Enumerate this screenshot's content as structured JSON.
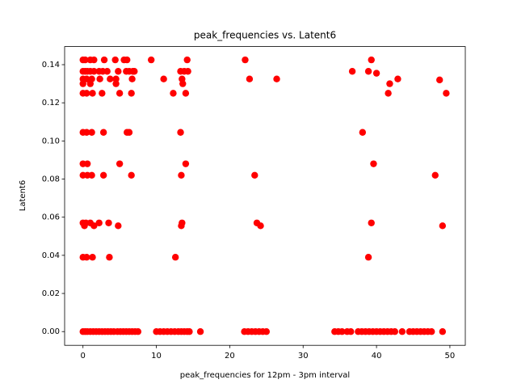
{
  "chart_data": {
    "type": "scatter",
    "title": "peak_frequencies vs. Latent6",
    "x_label": "peak_frequencies for 12pm - 3pm interval",
    "y_label": "Latent6",
    "color": "#ff0000",
    "xlim": [
      -2.5,
      52.1
    ],
    "ylim": [
      -0.0072,
      0.1495
    ],
    "xticks": [
      0,
      10,
      20,
      30,
      40,
      50
    ],
    "yticks": [
      {
        "value": 0,
        "label": "0.00"
      },
      {
        "value": 0.02,
        "label": "0.02"
      },
      {
        "value": 0.04,
        "label": "0.04"
      },
      {
        "value": 0.06,
        "label": "0.06"
      },
      {
        "value": 0.08,
        "label": "0.08"
      },
      {
        "value": 0.1,
        "label": "0.10"
      },
      {
        "value": 0.12,
        "label": "0.12"
      },
      {
        "value": 0.14,
        "label": "0.14"
      }
    ],
    "x": [
      0,
      0.3,
      1,
      1.5,
      2.9,
      4.4,
      5.6,
      6,
      9.3,
      14.2,
      22.1,
      39.3,
      0,
      0.3,
      0.6,
      1,
      1.5,
      2.2,
      2.7,
      3.3,
      4.8,
      5.9,
      6.3,
      6.8,
      7,
      13.3,
      13.8,
      14.3,
      36.7,
      38.9,
      40,
      0,
      0.5,
      1.2,
      2.3,
      3.7,
      4.5,
      6.7,
      11,
      13.5,
      22.7,
      26.4,
      42.9,
      48.6,
      0,
      1,
      4.5,
      13.6,
      41.8,
      0,
      0.5,
      1.3,
      2.6,
      5,
      6.6,
      12.3,
      14,
      41.6,
      49.5,
      0,
      0.5,
      1.2,
      2.8,
      6,
      6.3,
      13.3,
      38.1,
      0,
      0.6,
      5,
      14,
      39.6,
      0,
      0.6,
      1.2,
      2.8,
      6.6,
      13.4,
      23.4,
      48,
      0,
      0.4,
      1,
      2.2,
      3.5,
      13.5,
      23.7,
      39.3,
      0.2,
      1.5,
      4.8,
      13.4,
      24.2,
      49,
      0,
      0.5,
      1.3,
      3.6,
      12.6,
      38.9,
      0,
      0.3,
      0.6,
      1,
      1.4,
      1.8,
      2.2,
      2.6,
      3,
      3.4,
      3.8,
      4.2,
      4.7,
      5.1,
      5.5,
      5.9,
      6.3,
      6.7,
      7.1,
      7.5,
      10,
      10.5,
      11,
      11.5,
      12,
      12.5,
      13,
      13.4,
      13.8,
      14.2,
      14.5,
      16,
      22,
      22.5,
      23,
      23.5,
      24,
      24.5,
      25,
      34.3,
      34.8,
      35.3,
      36,
      36.5,
      37.5,
      38,
      38.5,
      39,
      39.5,
      40,
      40.5,
      41,
      41.5,
      42,
      42.5,
      43.5,
      44.5,
      45,
      45.5,
      46,
      46.5,
      47,
      47.5,
      49
    ],
    "values": [
      0.1425,
      0.1425,
      0.1425,
      0.1425,
      0.1425,
      0.1425,
      0.1425,
      0.1425,
      0.1425,
      0.1425,
      0.1425,
      0.1425,
      0.1365,
      0.1365,
      0.1365,
      0.1365,
      0.1365,
      0.1365,
      0.1365,
      0.1365,
      0.1365,
      0.1365,
      0.1365,
      0.1365,
      0.1365,
      0.1365,
      0.1365,
      0.1365,
      0.1365,
      0.1365,
      0.1355,
      0.1325,
      0.1325,
      0.1325,
      0.1325,
      0.1325,
      0.1325,
      0.1325,
      0.1325,
      0.1325,
      0.1325,
      0.1325,
      0.1325,
      0.132,
      0.13,
      0.13,
      0.13,
      0.13,
      0.13,
      0.125,
      0.125,
      0.125,
      0.125,
      0.125,
      0.125,
      0.125,
      0.125,
      0.125,
      0.125,
      0.1045,
      0.1045,
      0.1045,
      0.1045,
      0.1045,
      0.1045,
      0.1045,
      0.1045,
      0.088,
      0.088,
      0.088,
      0.088,
      0.088,
      0.082,
      0.082,
      0.082,
      0.082,
      0.082,
      0.082,
      0.082,
      0.082,
      0.057,
      0.057,
      0.057,
      0.057,
      0.057,
      0.057,
      0.057,
      0.057,
      0.0555,
      0.0555,
      0.0555,
      0.0555,
      0.0555,
      0.0555,
      0.039,
      0.039,
      0.039,
      0.039,
      0.039,
      0.039,
      0,
      0,
      0,
      0,
      0,
      0,
      0,
      0,
      0,
      0,
      0,
      0,
      0,
      0,
      0,
      0,
      0,
      0,
      0,
      0,
      0,
      0,
      0,
      0,
      0,
      0,
      0,
      0,
      0,
      0,
      0,
      0,
      0,
      0,
      0,
      0,
      0,
      0,
      0,
      0,
      0,
      0,
      0,
      0,
      0,
      0,
      0,
      0,
      0,
      0,
      0,
      0,
      0,
      0,
      0,
      0,
      0,
      0,
      0,
      0,
      0,
      0,
      0,
      0
    ]
  }
}
